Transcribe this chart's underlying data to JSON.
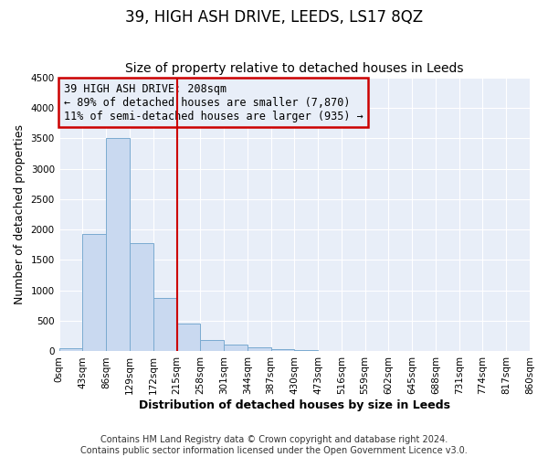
{
  "title": "39, HIGH ASH DRIVE, LEEDS, LS17 8QZ",
  "subtitle": "Size of property relative to detached houses in Leeds",
  "xlabel": "Distribution of detached houses by size in Leeds",
  "ylabel": "Number of detached properties",
  "bin_edges": [
    0,
    43,
    86,
    129,
    172,
    215,
    258,
    301,
    344,
    387,
    430,
    473,
    516,
    559,
    602,
    645,
    688,
    731,
    774,
    817,
    860
  ],
  "bar_heights": [
    50,
    1920,
    3500,
    1780,
    870,
    460,
    190,
    110,
    65,
    38,
    22,
    12,
    0,
    0,
    0,
    0,
    0,
    0,
    0,
    0
  ],
  "bar_color": "#c9d9f0",
  "bar_edgecolor": "#7aaad0",
  "vline_x": 215,
  "vline_color": "#cc0000",
  "ylim": [
    0,
    4500
  ],
  "yticks": [
    0,
    500,
    1000,
    1500,
    2000,
    2500,
    3000,
    3500,
    4000,
    4500
  ],
  "xtick_labels": [
    "0sqm",
    "43sqm",
    "86sqm",
    "129sqm",
    "172sqm",
    "215sqm",
    "258sqm",
    "301sqm",
    "344sqm",
    "387sqm",
    "430sqm",
    "473sqm",
    "516sqm",
    "559sqm",
    "602sqm",
    "645sqm",
    "688sqm",
    "731sqm",
    "774sqm",
    "817sqm",
    "860sqm"
  ],
  "annotation_title": "39 HIGH ASH DRIVE: 208sqm",
  "annotation_line1": "← 89% of detached houses are smaller (7,870)",
  "annotation_line2": "11% of semi-detached houses are larger (935) →",
  "annotation_box_color": "#cc0000",
  "footer1": "Contains HM Land Registry data © Crown copyright and database right 2024.",
  "footer2": "Contains public sector information licensed under the Open Government Licence v3.0.",
  "plot_bg_color": "#e8eef8",
  "fig_bg_color": "#ffffff",
  "grid_color": "#ffffff",
  "title_fontsize": 12,
  "subtitle_fontsize": 10,
  "axis_label_fontsize": 9,
  "tick_fontsize": 7.5,
  "annotation_fontsize": 8.5,
  "footer_fontsize": 7
}
